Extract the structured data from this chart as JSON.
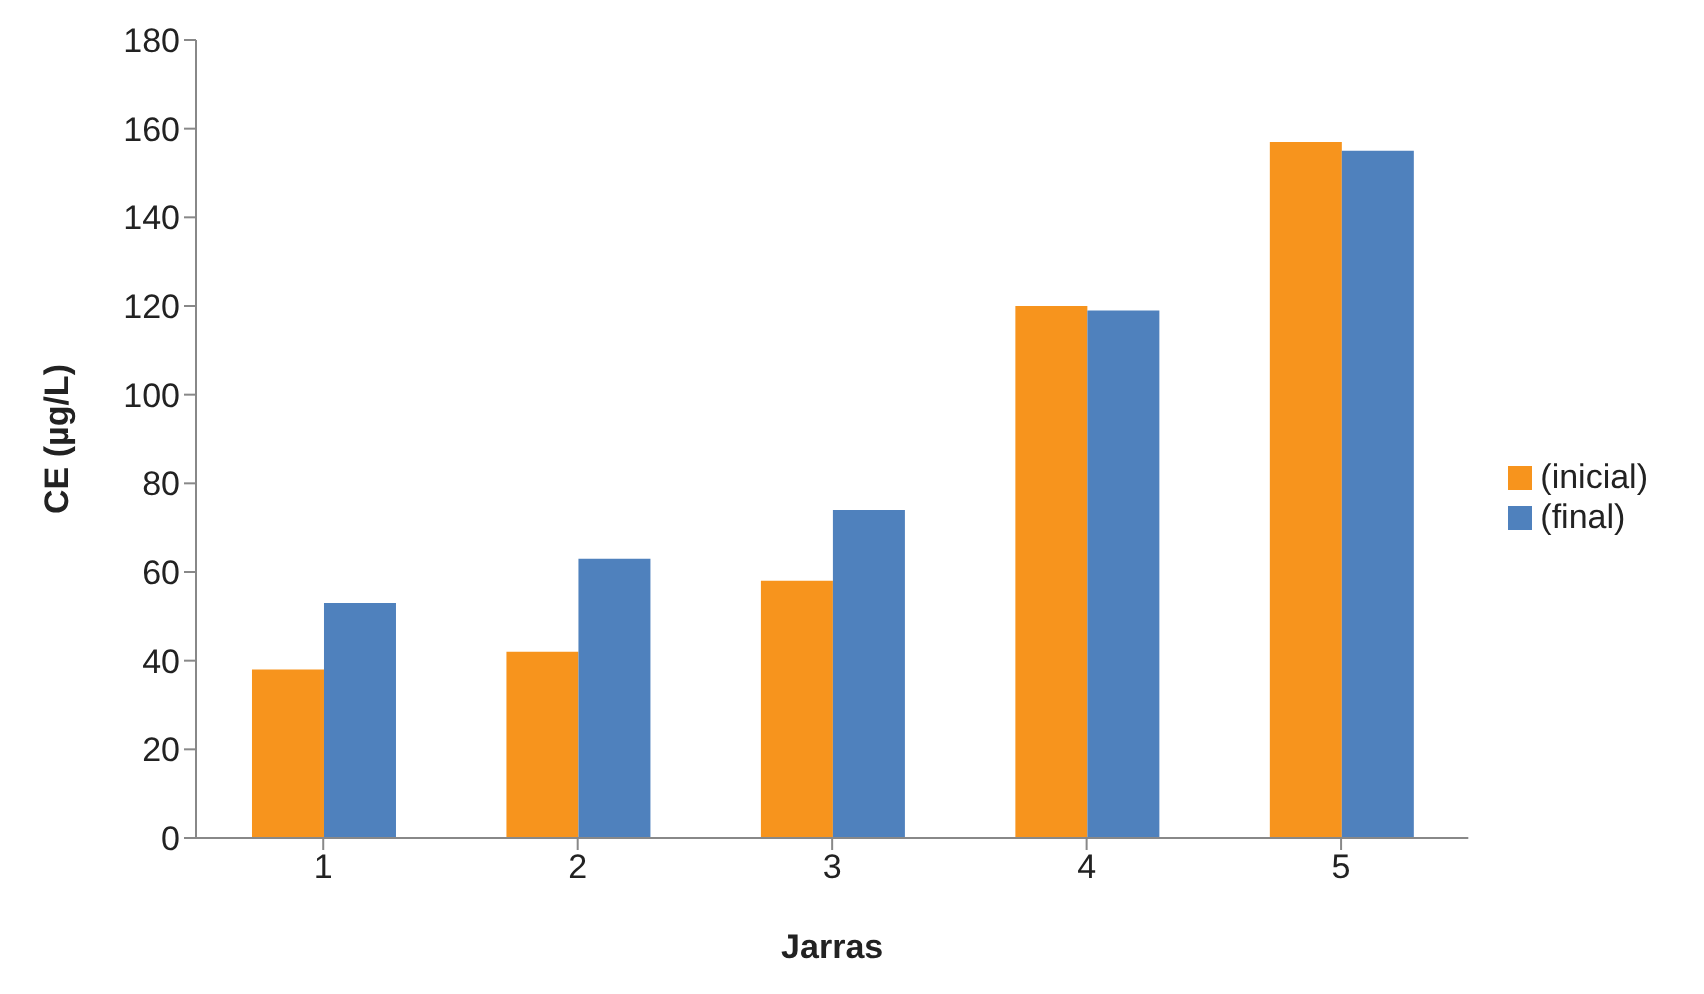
{
  "chart_data": {
    "type": "bar",
    "xlabel": "Jarras",
    "ylabel": "CE (µg/L)",
    "categories": [
      "1",
      "2",
      "3",
      "4",
      "5"
    ],
    "series": [
      {
        "name": "(inicial)",
        "color": "#f7941d",
        "values": [
          38,
          42,
          58,
          120,
          157
        ]
      },
      {
        "name": "(final)",
        "color": "#4f81bd",
        "values": [
          53,
          63,
          74,
          119,
          155
        ]
      }
    ],
    "ylim": [
      0,
      180
    ],
    "yticks": [
      0,
      20,
      40,
      60,
      80,
      100,
      120,
      140,
      160,
      180
    ],
    "grid": false,
    "legend": "right"
  }
}
